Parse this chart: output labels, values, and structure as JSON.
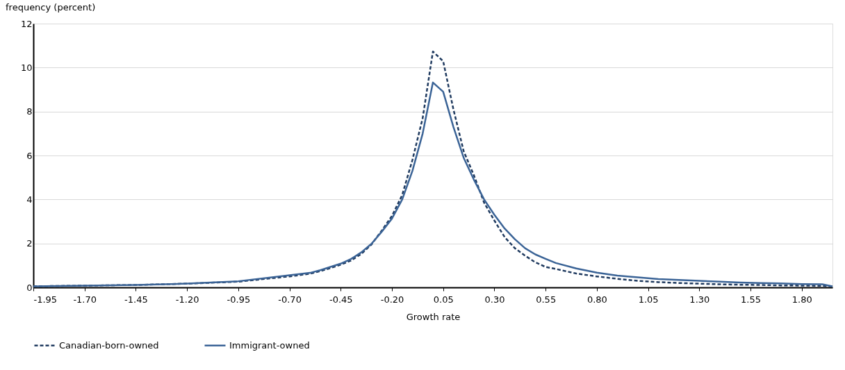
{
  "chart_data": {
    "type": "line",
    "xlabel": "Growth rate",
    "ylabel": "frequency (percent)",
    "xlim": [
      -1.95,
      1.95
    ],
    "ylim": [
      0,
      12
    ],
    "xticks": [
      {
        "value": -1.95,
        "label": "-1.95"
      },
      {
        "value": -1.7,
        "label": "-1.70"
      },
      {
        "value": -1.45,
        "label": "-1.45"
      },
      {
        "value": -1.2,
        "label": "-1.20"
      },
      {
        "value": -0.95,
        "label": "-0.95"
      },
      {
        "value": -0.7,
        "label": "-0.70"
      },
      {
        "value": -0.45,
        "label": "-0.45"
      },
      {
        "value": -0.2,
        "label": "-0.20"
      },
      {
        "value": 0.05,
        "label": "0.05"
      },
      {
        "value": 0.3,
        "label": "0.30"
      },
      {
        "value": 0.55,
        "label": "0.55"
      },
      {
        "value": 0.8,
        "label": "0.80"
      },
      {
        "value": 1.05,
        "label": "1.05"
      },
      {
        "value": 1.3,
        "label": "1.30"
      },
      {
        "value": 1.55,
        "label": "1.55"
      },
      {
        "value": 1.8,
        "label": "1.80"
      }
    ],
    "yticks": [
      0,
      2,
      4,
      6,
      8,
      10,
      12
    ],
    "grid": "y",
    "legend": "bottom",
    "marker": "none",
    "x": [
      -1.95,
      -1.7,
      -1.45,
      -1.2,
      -0.95,
      -0.7,
      -0.6,
      -0.55,
      -0.5,
      -0.45,
      -0.4,
      -0.35,
      -0.3,
      -0.25,
      -0.2,
      -0.15,
      -0.1,
      -0.05,
      0.0,
      0.05,
      0.1,
      0.15,
      0.2,
      0.25,
      0.3,
      0.35,
      0.4,
      0.45,
      0.5,
      0.55,
      0.6,
      0.7,
      0.8,
      0.9,
      1.0,
      1.1,
      1.2,
      1.3,
      1.4,
      1.5,
      1.6,
      1.7,
      1.8,
      1.9,
      1.95
    ],
    "series": [
      {
        "name": "Canadian-born-owned",
        "color": "#1f3a5f",
        "line_style": "dashed",
        "values": [
          0.05,
          0.08,
          0.11,
          0.17,
          0.26,
          0.5,
          0.62,
          0.74,
          0.88,
          1.03,
          1.22,
          1.52,
          1.95,
          2.58,
          3.25,
          4.2,
          5.8,
          7.7,
          10.73,
          10.29,
          8.1,
          6.2,
          5.1,
          3.85,
          3.04,
          2.29,
          1.78,
          1.44,
          1.14,
          0.93,
          0.84,
          0.63,
          0.5,
          0.39,
          0.3,
          0.24,
          0.2,
          0.17,
          0.14,
          0.12,
          0.11,
          0.09,
          0.08,
          0.07,
          0.04
        ]
      },
      {
        "name": "Immigrant-owned",
        "color": "#3a6396",
        "line_style": "solid",
        "values": [
          0.05,
          0.08,
          0.11,
          0.17,
          0.28,
          0.55,
          0.66,
          0.78,
          0.93,
          1.08,
          1.29,
          1.59,
          1.98,
          2.53,
          3.13,
          4.0,
          5.3,
          7.0,
          9.32,
          8.9,
          7.3,
          5.9,
          4.9,
          4.0,
          3.3,
          2.68,
          2.19,
          1.78,
          1.5,
          1.3,
          1.11,
          0.86,
          0.67,
          0.54,
          0.46,
          0.38,
          0.34,
          0.3,
          0.26,
          0.22,
          0.2,
          0.18,
          0.15,
          0.14,
          0.05
        ]
      }
    ]
  }
}
